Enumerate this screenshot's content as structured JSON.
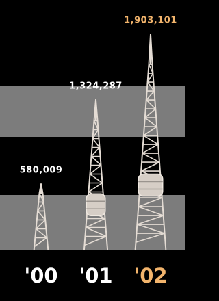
{
  "chart_data": {
    "type": "tower",
    "categories": [
      "'00",
      "'01",
      "'02"
    ],
    "values": [
      580009,
      1324287,
      1903101
    ],
    "value_labels": [
      "580,009",
      "1,324,287",
      "1,903,101"
    ],
    "label_colors": [
      "#ffffff",
      "#ffffff",
      "#f2b46c"
    ],
    "color": "#e4dcd4"
  }
}
